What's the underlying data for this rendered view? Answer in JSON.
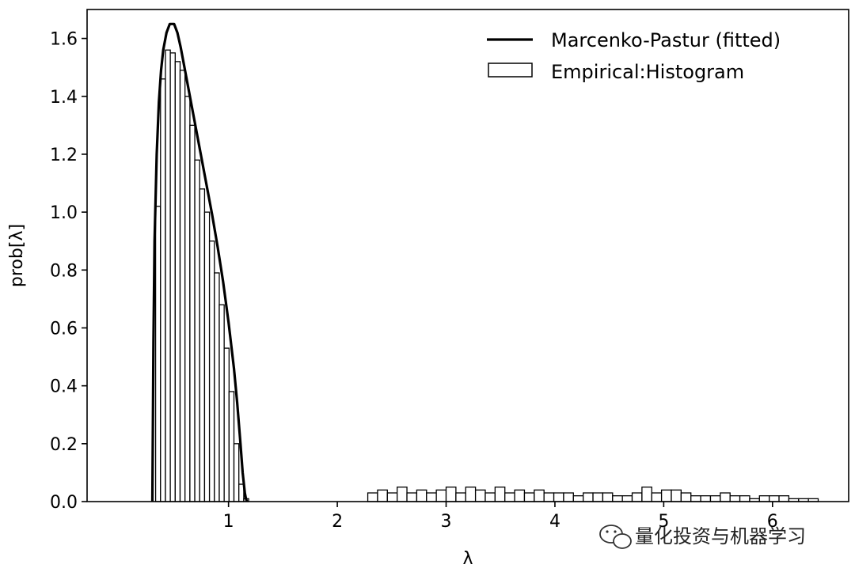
{
  "chart_data": {
    "type": "line",
    "xlabel": "λ",
    "ylabel": "prob[λ]",
    "xlim": [
      -0.3,
      6.7
    ],
    "ylim": [
      0,
      1.7
    ],
    "x_ticks": [
      1,
      2,
      3,
      4,
      5,
      6
    ],
    "y_ticks": [
      0.0,
      0.2,
      0.4,
      0.6,
      0.8,
      1.0,
      1.2,
      1.4,
      1.6
    ],
    "x_tick_labels": [
      "1",
      "2",
      "3",
      "4",
      "5",
      "6"
    ],
    "y_tick_labels": [
      "0.0",
      "0.2",
      "0.4",
      "0.6",
      "0.8",
      "1.0",
      "1.2",
      "1.4",
      "1.6"
    ],
    "legend_position": "top-right",
    "grid": false,
    "series": [
      {
        "name": "Marcenko-Pastur (fitted)",
        "kind": "line",
        "color": "#000000",
        "x": [
          0.3,
          0.31,
          0.32,
          0.34,
          0.36,
          0.38,
          0.4,
          0.43,
          0.46,
          0.5,
          0.53,
          0.56,
          0.6,
          0.65,
          0.7,
          0.75,
          0.8,
          0.85,
          0.9,
          0.95,
          1.0,
          1.05,
          1.08,
          1.11,
          1.13,
          1.15,
          1.16,
          1.17
        ],
        "y": [
          0.0,
          0.55,
          0.9,
          1.2,
          1.38,
          1.49,
          1.56,
          1.62,
          1.65,
          1.65,
          1.62,
          1.57,
          1.49,
          1.39,
          1.29,
          1.19,
          1.09,
          0.99,
          0.88,
          0.76,
          0.62,
          0.46,
          0.34,
          0.2,
          0.1,
          0.03,
          0.01,
          0.0
        ]
      },
      {
        "name": "Empirical:Histogram",
        "kind": "histogram",
        "color": "#000000",
        "bin_width": 0.045,
        "bin_left": [
          0.33,
          0.375,
          0.42,
          0.465,
          0.51,
          0.555,
          0.6,
          0.645,
          0.69,
          0.735,
          0.78,
          0.825,
          0.87,
          0.915,
          0.96,
          1.005,
          1.05,
          1.095,
          1.14,
          2.28,
          2.37,
          2.46,
          2.55,
          2.64,
          2.73,
          2.82,
          2.91,
          3.0,
          3.09,
          3.18,
          3.27,
          3.36,
          3.45,
          3.54,
          3.63,
          3.72,
          3.81,
          3.9,
          3.99,
          4.08,
          4.17,
          4.26,
          4.35,
          4.44,
          4.53,
          4.62,
          4.71,
          4.8,
          4.89,
          4.98,
          5.07,
          5.16,
          5.25,
          5.34,
          5.43,
          5.52,
          5.61,
          5.7,
          5.79,
          5.88,
          5.97,
          6.06,
          6.15,
          6.24,
          6.33
        ],
        "bin_width_outliers": 0.09,
        "counts": [
          1.02,
          1.46,
          1.56,
          1.55,
          1.52,
          1.49,
          1.4,
          1.3,
          1.18,
          1.08,
          1.0,
          0.9,
          0.79,
          0.68,
          0.53,
          0.38,
          0.2,
          0.06,
          0.01,
          0.03,
          0.04,
          0.03,
          0.05,
          0.03,
          0.04,
          0.03,
          0.04,
          0.05,
          0.03,
          0.05,
          0.04,
          0.03,
          0.05,
          0.03,
          0.04,
          0.03,
          0.04,
          0.03,
          0.03,
          0.03,
          0.02,
          0.03,
          0.03,
          0.03,
          0.02,
          0.02,
          0.03,
          0.05,
          0.03,
          0.04,
          0.04,
          0.03,
          0.02,
          0.02,
          0.02,
          0.03,
          0.02,
          0.02,
          0.01,
          0.02,
          0.02,
          0.02,
          0.01,
          0.01,
          0.01
        ]
      }
    ]
  },
  "watermark": {
    "icon": "wechat-icon",
    "text": "量化投资与机器学习"
  }
}
